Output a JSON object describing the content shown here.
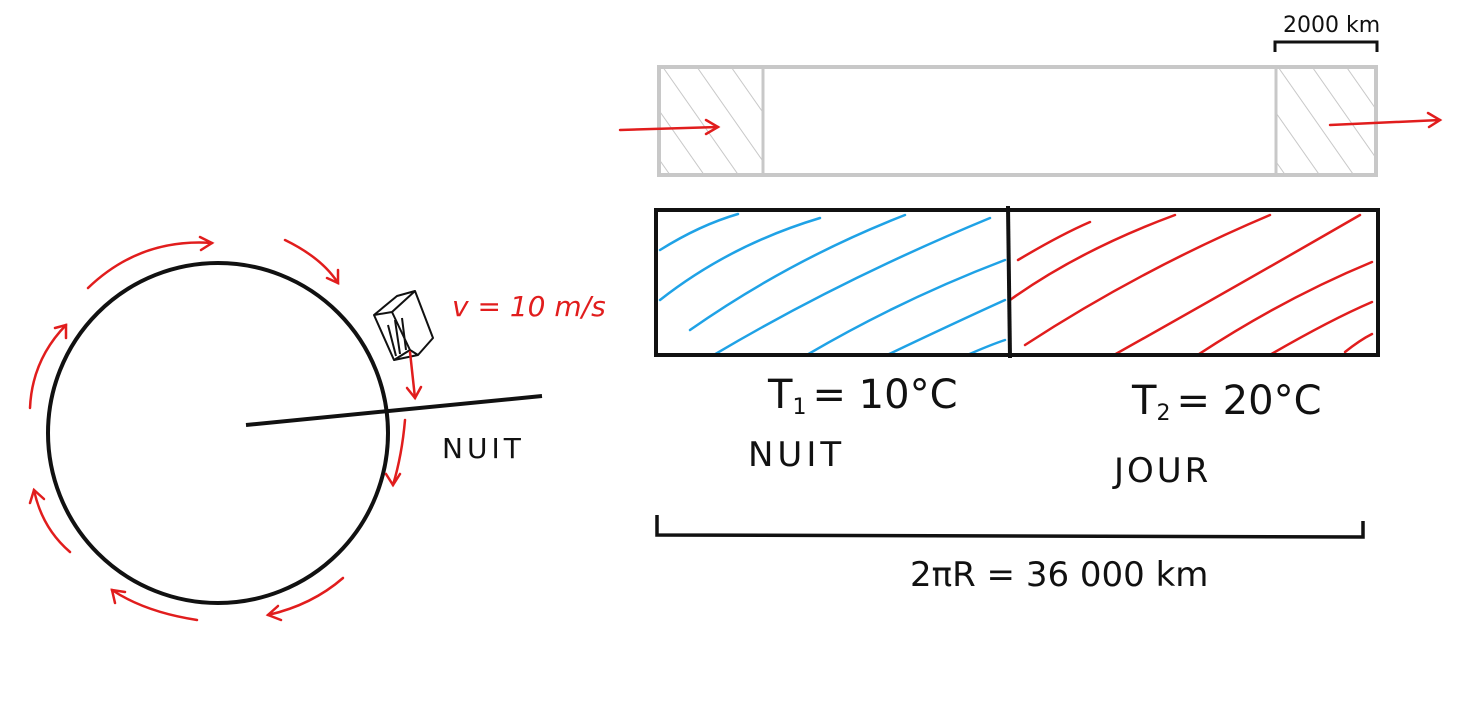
{
  "colors": {
    "ink": "#111111",
    "red": "#e11d1d",
    "blue": "#1fa2e6",
    "gray": "#c8c8c8"
  },
  "labels": {
    "velocity": "v = 10 m/s",
    "night_circle": "NUIT",
    "t1_symbol": "T",
    "t1_sub": "1",
    "t1_value": "= 10°C",
    "t2_symbol": "T",
    "t2_sub": "2",
    "t2_value": "= 20°C",
    "night_band": "NUIT",
    "day_band": "JOUR",
    "circumference": "2πR = 36 000 km",
    "zone_width": "2000 km"
  },
  "icons": {
    "rotation": "rotation-arrows-icon",
    "air_parcel": "air-parcel-cube-icon",
    "flow_in": "flow-in-arrow-icon",
    "flow_out": "flow-out-arrow-icon"
  }
}
